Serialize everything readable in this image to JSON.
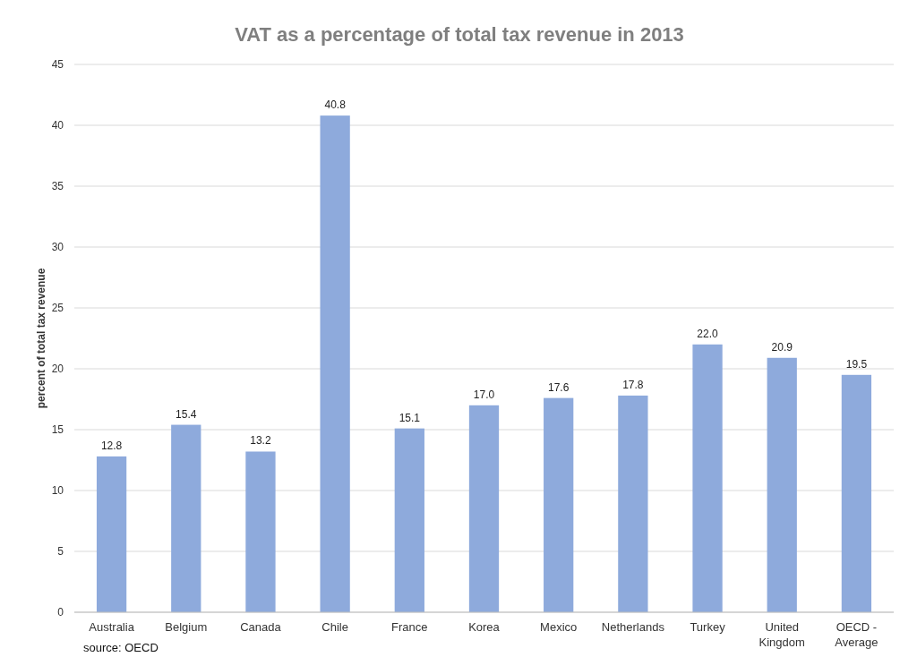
{
  "chart_data": {
    "type": "bar",
    "title": "VAT as a percentage of total tax revenue in 2013",
    "ylabel": "percent  of total tax revenue",
    "categories": [
      "Australia",
      "Belgium",
      "Canada",
      "Chile",
      "France",
      "Korea",
      "Mexico",
      "Netherlands",
      "Turkey",
      "United Kingdom",
      "OECD - Average"
    ],
    "values": [
      12.8,
      15.4,
      13.2,
      40.8,
      15.1,
      17.0,
      17.6,
      17.8,
      22.0,
      20.9,
      19.5
    ],
    "value_labels": [
      "12.8",
      "15.4",
      "13.2",
      "40.8",
      "15.1",
      "17.0",
      "17.6",
      "17.8",
      "22.0",
      "20.9",
      "19.5"
    ],
    "color": "#8eaadc",
    "ylim": [
      0,
      45
    ],
    "yticks": [
      0,
      5,
      10,
      15,
      20,
      25,
      30,
      35,
      40,
      45
    ],
    "grid": "y",
    "annotations": [
      "source: OECD"
    ]
  }
}
